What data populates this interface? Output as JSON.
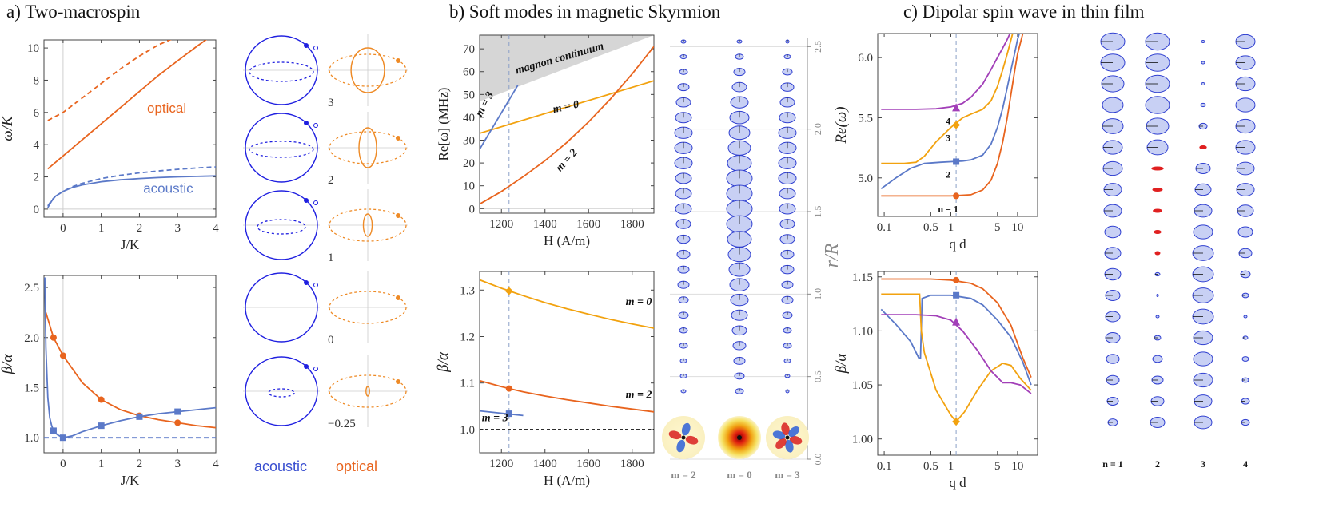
{
  "panels": {
    "a": {
      "title": "a) Two-macrospin",
      "orbit_legend": [
        "acoustic",
        "optical"
      ],
      "orbit_labels": [
        "3",
        "2",
        "1",
        "0",
        "−0.25"
      ]
    },
    "b": {
      "title": "b) Soft modes in magnetic Skyrmion",
      "profile_axis_label": "r/R",
      "profile_ticks": [
        "0.0",
        "0.5",
        "1.0",
        "1.5",
        "2.0",
        "2.5"
      ],
      "profile_columns": [
        "m = 2",
        "m = 0",
        "m = 3"
      ]
    },
    "c": {
      "title": "c) Dipolar spin wave in thin film",
      "profile_columns": [
        "n = 1",
        "2",
        "3",
        "4"
      ]
    }
  },
  "colors": {
    "acoustic": "#5b79c8",
    "optical": "#e8641e",
    "m0": "#f2a20f",
    "m2": "#e8641e",
    "m3": "#5b79c8",
    "n4": "#a23fb8",
    "orbit_blue": "#1f1fe0",
    "orbit_orange": "#ee8a25",
    "continuum": "#d6d6d6"
  },
  "chart_data": [
    {
      "id": "a1",
      "type": "line",
      "title": "",
      "xlabel": "J/K",
      "ylabel": "ω/K",
      "xlim": [
        -0.5,
        4
      ],
      "ylim": [
        -0.5,
        10.5
      ],
      "xticks": [
        0,
        1,
        2,
        3,
        4
      ],
      "yticks": [
        0,
        2,
        4,
        6,
        8,
        10
      ],
      "series": [
        {
          "name": "optical",
          "color": "#e8641e",
          "dash": false,
          "x": [
            -0.4,
            0,
            0.5,
            1,
            1.5,
            2,
            2.5,
            3,
            3.5,
            3.8
          ],
          "y": [
            2.5,
            3.3,
            4.3,
            5.3,
            6.3,
            7.3,
            8.3,
            9.2,
            10.1,
            10.6
          ]
        },
        {
          "name": "optical-dashed",
          "color": "#e8641e",
          "dash": true,
          "x": [
            -0.4,
            0,
            0.5,
            1,
            1.5,
            2,
            2.5,
            2.9
          ],
          "y": [
            5.5,
            6.0,
            6.9,
            7.8,
            8.7,
            9.5,
            10.2,
            10.6
          ]
        },
        {
          "name": "acoustic",
          "color": "#5b79c8",
          "dash": false,
          "x": [
            -0.4,
            -0.3,
            -0.2,
            0,
            0.25,
            0.5,
            1,
            1.5,
            2,
            2.5,
            3,
            3.5,
            4
          ],
          "y": [
            0.1,
            0.5,
            0.8,
            1.1,
            1.35,
            1.5,
            1.7,
            1.82,
            1.9,
            1.96,
            2.0,
            2.03,
            2.06
          ]
        },
        {
          "name": "acoustic-dashed",
          "color": "#5b79c8",
          "dash": true,
          "x": [
            -0.4,
            -0.3,
            -0.2,
            0,
            0.25,
            0.5,
            1,
            1.5,
            2,
            2.5,
            3,
            3.5,
            4
          ],
          "y": [
            0.2,
            0.55,
            0.8,
            1.1,
            1.4,
            1.6,
            1.9,
            2.1,
            2.25,
            2.37,
            2.47,
            2.55,
            2.62
          ]
        }
      ],
      "annotations": [
        {
          "text": "optical",
          "x": 2.2,
          "y": 6.0,
          "color": "#e8641e"
        },
        {
          "text": "acoustic",
          "x": 2.1,
          "y": 1.0,
          "color": "#5b79c8"
        }
      ],
      "markers": [],
      "vline": null,
      "hline": null
    },
    {
      "id": "a2",
      "type": "line",
      "title": "",
      "xlabel": "J/K",
      "ylabel": "β/α",
      "xlim": [
        -0.5,
        4
      ],
      "ylim": [
        0.85,
        2.62
      ],
      "xticks": [
        0,
        1,
        2,
        3,
        4
      ],
      "yticks": [
        1.0,
        1.5,
        2.0,
        2.5
      ],
      "series": [
        {
          "name": "optical",
          "color": "#e8641e",
          "dash": false,
          "x": [
            -0.45,
            -0.25,
            0,
            0.5,
            1,
            1.5,
            2,
            2.5,
            3,
            3.5,
            4
          ],
          "y": [
            2.25,
            2.0,
            1.82,
            1.55,
            1.38,
            1.28,
            1.22,
            1.18,
            1.15,
            1.12,
            1.1
          ]
        },
        {
          "name": "acoustic",
          "color": "#5b79c8",
          "dash": false,
          "x": [
            -0.48,
            -0.45,
            -0.4,
            -0.35,
            -0.3,
            -0.25,
            -0.15,
            0,
            0.25,
            0.5,
            1,
            1.5,
            2,
            2.5,
            3,
            3.5,
            4
          ],
          "y": [
            2.6,
            1.9,
            1.4,
            1.2,
            1.12,
            1.07,
            1.03,
            1.0,
            1.02,
            1.06,
            1.12,
            1.17,
            1.21,
            1.24,
            1.26,
            1.28,
            1.3
          ]
        },
        {
          "name": "reference",
          "color": "#5b79c8",
          "dash": true,
          "x": [
            -0.5,
            4
          ],
          "y": [
            1.0,
            1.0
          ]
        }
      ],
      "markers": [
        {
          "shape": "circle",
          "color": "#e8641e",
          "x": -0.25,
          "y": 2.0
        },
        {
          "shape": "circle",
          "color": "#e8641e",
          "x": 0,
          "y": 1.82
        },
        {
          "shape": "circle",
          "color": "#e8641e",
          "x": 1,
          "y": 1.38
        },
        {
          "shape": "circle",
          "color": "#e8641e",
          "x": 2,
          "y": 1.22
        },
        {
          "shape": "circle",
          "color": "#e8641e",
          "x": 3,
          "y": 1.15
        },
        {
          "shape": "square",
          "color": "#5b79c8",
          "x": -0.25,
          "y": 1.07
        },
        {
          "shape": "square",
          "color": "#5b79c8",
          "x": 0,
          "y": 1.0
        },
        {
          "shape": "square",
          "color": "#5b79c8",
          "x": 1,
          "y": 1.12
        },
        {
          "shape": "square",
          "color": "#5b79c8",
          "x": 2,
          "y": 1.21
        },
        {
          "shape": "square",
          "color": "#5b79c8",
          "x": 3,
          "y": 1.26
        }
      ],
      "annotations": [],
      "vline": null,
      "hline": null
    },
    {
      "id": "b1",
      "type": "line",
      "title": "",
      "xlabel": "H (A/m)",
      "ylabel": "Re[ω] (MHz)",
      "xlim": [
        1100,
        1900
      ],
      "ylim": [
        -2,
        76
      ],
      "xticks": [
        1200,
        1400,
        1600,
        1800
      ],
      "yticks": [
        0,
        10,
        20,
        30,
        40,
        50,
        60,
        70
      ],
      "continuum": {
        "label": "magnon continuum",
        "x": [
          1100,
          1900
        ],
        "y": [
          47,
          76
        ]
      },
      "series": [
        {
          "name": "m = 0",
          "color": "#f2a20f",
          "dash": false,
          "x": [
            1100,
            1900
          ],
          "y": [
            33,
            56
          ]
        },
        {
          "name": "m = 2",
          "color": "#e8641e",
          "dash": false,
          "x": [
            1100,
            1200,
            1300,
            1400,
            1500,
            1600,
            1700,
            1800,
            1900
          ],
          "y": [
            2,
            7.5,
            14,
            21,
            29,
            38,
            48,
            59,
            71
          ]
        },
        {
          "name": "m = 3",
          "color": "#5b79c8",
          "dash": false,
          "x": [
            1100,
            1150,
            1200,
            1250,
            1275
          ],
          "y": [
            26,
            34,
            42,
            50,
            54
          ]
        }
      ],
      "annotations": [
        {
          "text": "magnon continuum",
          "x": 1270,
          "y": 59,
          "rotate": -16,
          "color": "#111"
        },
        {
          "text": "m = 0",
          "x": 1440,
          "y": 42,
          "rotate": -12,
          "color": "#111"
        },
        {
          "text": "m = 2",
          "x": 1470,
          "y": 16,
          "rotate": -48,
          "color": "#111"
        },
        {
          "text": "m = 3",
          "x": 1108,
          "y": 40,
          "rotate": -62,
          "color": "#111"
        }
      ],
      "markers": [],
      "vline": 1235,
      "hline": null
    },
    {
      "id": "b2",
      "type": "line",
      "title": "",
      "xlabel": "H (A/m)",
      "ylabel": "β/α",
      "xlim": [
        1100,
        1900
      ],
      "ylim": [
        0.95,
        1.34
      ],
      "xticks": [
        1200,
        1400,
        1600,
        1800
      ],
      "yticks": [
        1.0,
        1.1,
        1.2,
        1.3
      ],
      "series": [
        {
          "name": "m = 0",
          "color": "#f2a20f",
          "dash": false,
          "x": [
            1100,
            1200,
            1300,
            1400,
            1500,
            1600,
            1700,
            1800,
            1900
          ],
          "y": [
            1.322,
            1.304,
            1.288,
            1.273,
            1.26,
            1.248,
            1.237,
            1.227,
            1.218
          ]
        },
        {
          "name": "m = 2",
          "color": "#e8641e",
          "dash": false,
          "x": [
            1100,
            1200,
            1300,
            1400,
            1500,
            1600,
            1700,
            1800,
            1900
          ],
          "y": [
            1.105,
            1.092,
            1.081,
            1.072,
            1.064,
            1.057,
            1.05,
            1.044,
            1.038
          ]
        },
        {
          "name": "m = 3",
          "color": "#5b79c8",
          "dash": false,
          "x": [
            1100,
            1200,
            1300
          ],
          "y": [
            1.04,
            1.035,
            1.03
          ]
        }
      ],
      "hline": {
        "y": 1.0,
        "color": "#111",
        "dash": true
      },
      "markers": [
        {
          "shape": "diamond",
          "color": "#f2a20f",
          "x": 1235,
          "y": 1.298
        },
        {
          "shape": "circle",
          "color": "#e8641e",
          "x": 1235,
          "y": 1.088
        },
        {
          "shape": "square",
          "color": "#5b79c8",
          "x": 1235,
          "y": 1.034
        }
      ],
      "annotations": [
        {
          "text": "m = 0",
          "x": 1770,
          "y": 1.268,
          "rotate": 0,
          "color": "#111"
        },
        {
          "text": "m = 2",
          "x": 1770,
          "y": 1.068,
          "rotate": 0,
          "color": "#111"
        },
        {
          "text": "m = 3",
          "x": 1110,
          "y": 1.018,
          "rotate": 0,
          "color": "#111"
        }
      ],
      "vline": 1235
    },
    {
      "id": "c1",
      "type": "line",
      "title": "",
      "xlabel": "q d",
      "ylabel": "Re(ω)",
      "xscale": "log",
      "xlim": [
        0.08,
        20
      ],
      "ylim": [
        4.68,
        6.2
      ],
      "xticks": [
        0.1,
        0.5,
        1,
        5,
        10
      ],
      "xticklabels": [
        "0.1",
        "0.5",
        "1",
        "5",
        "10"
      ],
      "yticks": [
        5.0,
        5.5,
        6.0
      ],
      "series": [
        {
          "name": "n = 1",
          "color": "#e8641e",
          "dash": false,
          "x": [
            0.09,
            0.3,
            1,
            2,
            3,
            4,
            5,
            6,
            7,
            8,
            9,
            10,
            12,
            14
          ],
          "y": [
            4.85,
            4.85,
            4.85,
            4.86,
            4.9,
            4.98,
            5.12,
            5.3,
            5.5,
            5.7,
            5.88,
            6.03,
            6.2,
            6.35
          ]
        },
        {
          "name": "n = 2",
          "color": "#5b79c8",
          "dash": false,
          "x": [
            0.09,
            0.15,
            0.25,
            0.4,
            0.7,
            1,
            1.5,
            2,
            3,
            4,
            5,
            6,
            7,
            8,
            9,
            10,
            12
          ],
          "y": [
            4.91,
            5.0,
            5.08,
            5.12,
            5.13,
            5.135,
            5.14,
            5.15,
            5.19,
            5.28,
            5.42,
            5.58,
            5.75,
            5.9,
            6.03,
            6.15,
            6.3
          ]
        },
        {
          "name": "n = 3",
          "color": "#f2a20f",
          "dash": false,
          "x": [
            0.09,
            0.2,
            0.3,
            0.4,
            0.6,
            1,
            1.5,
            2,
            3,
            4,
            5,
            6,
            7,
            8,
            9,
            10
          ],
          "y": [
            5.12,
            5.12,
            5.13,
            5.18,
            5.3,
            5.42,
            5.5,
            5.53,
            5.57,
            5.64,
            5.76,
            5.9,
            6.03,
            6.15,
            6.26,
            6.35
          ]
        },
        {
          "name": "n = 4",
          "color": "#a23fb8",
          "dash": false,
          "x": [
            0.09,
            0.3,
            0.6,
            1,
            1.5,
            2,
            3,
            4,
            5,
            6,
            7,
            8,
            9
          ],
          "y": [
            5.57,
            5.57,
            5.575,
            5.59,
            5.62,
            5.67,
            5.78,
            5.9,
            6.0,
            6.08,
            6.15,
            6.22,
            6.3
          ]
        }
      ],
      "markers": [
        {
          "shape": "circle",
          "color": "#e8641e",
          "x": 1.2,
          "y": 4.85,
          "label": "n = 1"
        },
        {
          "shape": "square",
          "color": "#5b79c8",
          "x": 1.2,
          "y": 5.135,
          "label": "2"
        },
        {
          "shape": "diamond",
          "color": "#f2a20f",
          "x": 1.2,
          "y": 5.44,
          "label": "3"
        },
        {
          "shape": "triangle",
          "color": "#a23fb8",
          "x": 1.2,
          "y": 5.58,
          "label": "4"
        }
      ],
      "annotations": [],
      "vline": 1.2,
      "hline": null
    },
    {
      "id": "c2",
      "type": "line",
      "title": "",
      "xlabel": "q d",
      "ylabel": "β/α",
      "xscale": "log",
      "xlim": [
        0.08,
        20
      ],
      "ylim": [
        0.985,
        1.155
      ],
      "xticks": [
        0.1,
        0.5,
        1,
        5,
        10
      ],
      "xticklabels": [
        "0.1",
        "0.5",
        "1",
        "5",
        "10"
      ],
      "yticks": [
        1.0,
        1.05,
        1.1,
        1.15
      ],
      "series": [
        {
          "name": "n = 1",
          "color": "#e8641e",
          "dash": false,
          "x": [
            0.09,
            0.5,
            1,
            2,
            3,
            5,
            8,
            12,
            16
          ],
          "y": [
            1.148,
            1.148,
            1.147,
            1.144,
            1.139,
            1.126,
            1.105,
            1.075,
            1.057
          ]
        },
        {
          "name": "n = 2",
          "color": "#5b79c8",
          "dash": false,
          "x": [
            0.09,
            0.15,
            0.25,
            0.33,
            0.35,
            0.37,
            0.5,
            1,
            2,
            3,
            5,
            8,
            12,
            16
          ],
          "y": [
            1.12,
            1.106,
            1.09,
            1.075,
            1.075,
            1.13,
            1.133,
            1.133,
            1.13,
            1.124,
            1.11,
            1.094,
            1.071,
            1.05
          ]
        },
        {
          "name": "n = 3",
          "color": "#f2a20f",
          "dash": false,
          "x": [
            0.09,
            0.3,
            0.34,
            0.36,
            0.4,
            0.6,
            1,
            1.2,
            1.6,
            2.5,
            4,
            6,
            8,
            11,
            16
          ],
          "y": [
            1.134,
            1.134,
            1.134,
            1.1,
            1.08,
            1.045,
            1.022,
            1.016,
            1.025,
            1.045,
            1.063,
            1.07,
            1.068,
            1.056,
            1.045
          ]
        },
        {
          "name": "n = 4",
          "color": "#a23fb8",
          "dash": false,
          "x": [
            0.09,
            0.3,
            0.6,
            1,
            1.5,
            2.5,
            4,
            6,
            8,
            11,
            16
          ],
          "y": [
            1.115,
            1.115,
            1.114,
            1.11,
            1.1,
            1.082,
            1.063,
            1.052,
            1.052,
            1.05,
            1.042
          ]
        }
      ],
      "markers": [
        {
          "shape": "circle",
          "color": "#e8641e",
          "x": 1.2,
          "y": 1.147
        },
        {
          "shape": "square",
          "color": "#5b79c8",
          "x": 1.2,
          "y": 1.133
        },
        {
          "shape": "triangle",
          "color": "#a23fb8",
          "x": 1.2,
          "y": 1.108
        },
        {
          "shape": "diamond",
          "color": "#f2a20f",
          "x": 1.2,
          "y": 1.016
        }
      ],
      "annotations": [],
      "vline": 1.2,
      "hline": null
    }
  ]
}
